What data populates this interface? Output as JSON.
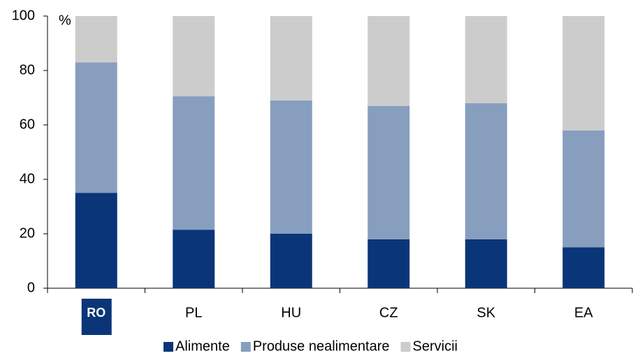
{
  "chart_data": {
    "type": "stacked_bar",
    "y_unit": "%",
    "categories": [
      "RO",
      "PL",
      "HU",
      "CZ",
      "SK",
      "EA"
    ],
    "series": [
      {
        "name": "Alimente",
        "color": "#0a3578",
        "values": [
          35,
          21.5,
          20,
          18,
          18,
          15
        ]
      },
      {
        "name": "Produse nealimentare",
        "color": "#879ebf",
        "values": [
          48,
          49,
          49,
          49,
          50,
          43
        ]
      },
      {
        "name": "Servicii",
        "color": "#cccccc",
        "values": [
          17,
          29.5,
          31,
          33,
          32,
          42
        ]
      }
    ],
    "ylim": [
      0,
      100
    ],
    "yticks": [
      0,
      20,
      40,
      60,
      80,
      100
    ],
    "grid": false,
    "highlight": [
      0
    ],
    "legend": "bottom"
  }
}
